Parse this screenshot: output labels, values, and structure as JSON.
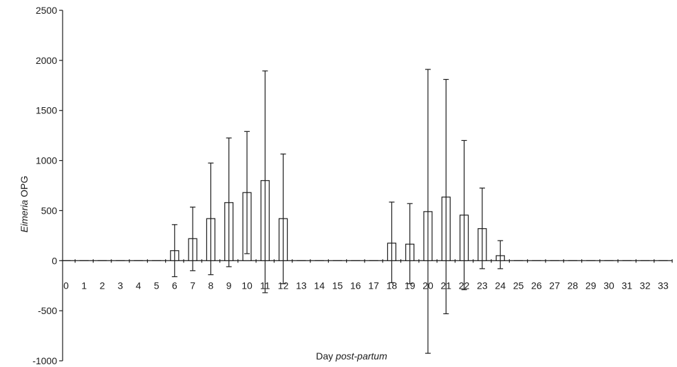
{
  "chart_data": {
    "type": "bar",
    "xlabel": {
      "prefix": "Day ",
      "italic": "post-partum"
    },
    "ylabel": {
      "italic": "Eimeria",
      "suffix": " OPG"
    },
    "ylim": [
      -1000,
      2500
    ],
    "yticks": [
      -1000,
      -500,
      0,
      500,
      1000,
      1500,
      2000,
      2500
    ],
    "categories": [
      "0",
      "1",
      "2",
      "3",
      "4",
      "5",
      "6",
      "7",
      "8",
      "9",
      "10",
      "11",
      "12",
      "13",
      "14",
      "15",
      "16",
      "17",
      "18",
      "19",
      "20",
      "21",
      "22",
      "23",
      "24",
      "25",
      "26",
      "27",
      "28",
      "29",
      "30",
      "31",
      "32",
      "33"
    ],
    "values": [
      0,
      0,
      0,
      0,
      0,
      0,
      100,
      220,
      420,
      580,
      680,
      800,
      420,
      0,
      0,
      0,
      0,
      0,
      175,
      165,
      490,
      635,
      455,
      320,
      50,
      0,
      0,
      0,
      0,
      0,
      0,
      0,
      0,
      0
    ],
    "error_low": [
      null,
      null,
      null,
      null,
      null,
      null,
      -160,
      -100,
      -140,
      -60,
      70,
      -320,
      -230,
      null,
      null,
      null,
      null,
      null,
      -220,
      -230,
      -925,
      -530,
      -290,
      -80,
      -80,
      null,
      null,
      null,
      null,
      null,
      null,
      null,
      null,
      null
    ],
    "error_high": [
      null,
      null,
      null,
      null,
      null,
      null,
      360,
      535,
      975,
      1225,
      1290,
      1895,
      1065,
      null,
      null,
      null,
      null,
      null,
      585,
      570,
      1910,
      1810,
      1200,
      725,
      200,
      null,
      null,
      null,
      null,
      null,
      null,
      null,
      null,
      null
    ],
    "grid": false,
    "legend": "none"
  }
}
